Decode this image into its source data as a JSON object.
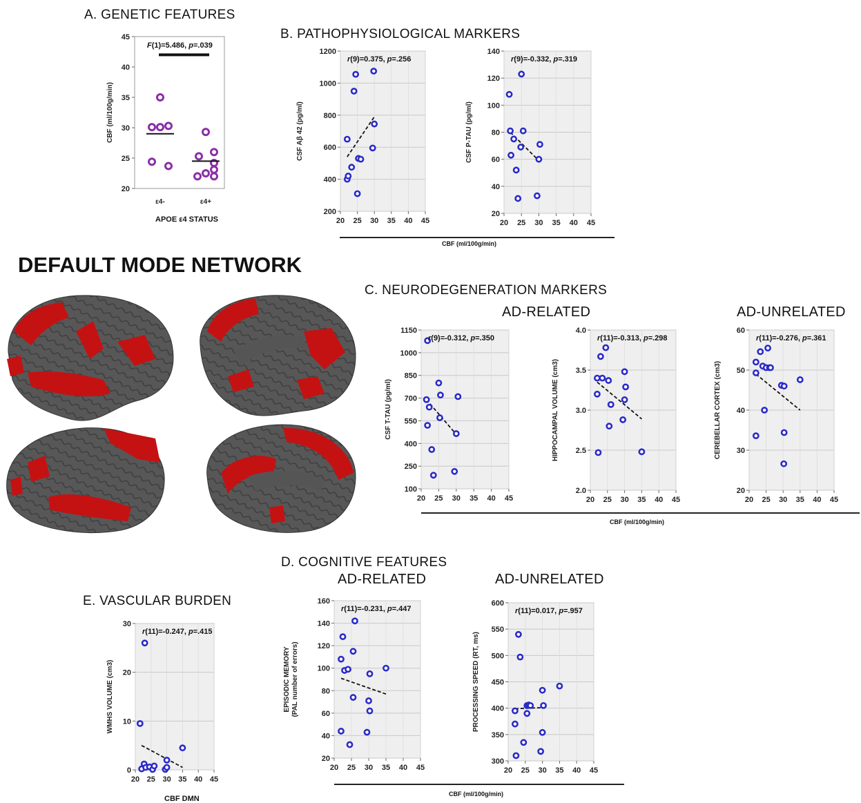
{
  "network_title": "DEFAULT MODE NETWORK",
  "sections": {
    "a": "A. GENETIC  FEATURES",
    "b": "B. PATHOPHYSIOLOGICAL  MARKERS",
    "c": "C. NEURODEGENERATION  MARKERS",
    "c_ad_related": "AD-RELATED",
    "c_ad_unrelated": "AD-UNRELATED",
    "d": "D. COGNITIVE  FEATURES",
    "d_ad_related": "AD-RELATED",
    "d_ad_unrelated": "AD-UNRELATED",
    "e": "E. VASCULAR  BURDEN"
  },
  "shared_xlabels": {
    "b": "CBF (ml/100g/min)",
    "c": "CBF (ml/100g/min)",
    "d": "CBF (ml/100g/min)",
    "e": "CBF DMN"
  },
  "brain": {
    "cortex_color": "#555556",
    "network_color": "#c41212",
    "views": [
      "lateral-left",
      "medial-right",
      "lateral-right",
      "medial-left"
    ]
  },
  "chart_data": [
    {
      "id": "apoe",
      "type": "scatter",
      "categories": [
        "ε4-",
        "ε4+"
      ],
      "groups": [
        {
          "name": "ε4-",
          "values": [
            35,
            30.1,
            30.1,
            30.3,
            24.4,
            23.7
          ],
          "mean": 29
        }
      ],
      "groups_extra": [
        {
          "name": "ε4+",
          "values": [
            29.3,
            26,
            25.3,
            24.2,
            23.1,
            22,
            22,
            22.5
          ],
          "mean": 24.5
        }
      ],
      "annotation": "F(1)=5.486, p=.039",
      "ylabel": "CBF (ml/100g/min)",
      "xlabel": "APOE ε4 STATUS",
      "ylim": [
        20,
        45
      ],
      "yticks": [
        20,
        25,
        30,
        35,
        40,
        45
      ],
      "marker_color": "#8b2fa8",
      "bg": "#ffffff"
    },
    {
      "id": "abeta",
      "type": "scatter",
      "annotation": "r(9)=0.375, p=.256",
      "ylabel": "CSF Aβ 42 (pg/ml)",
      "xlim": [
        20,
        45
      ],
      "ylim": [
        200,
        1200
      ],
      "xticks": [
        20,
        25,
        30,
        35,
        40,
        45
      ],
      "yticks": [
        200,
        400,
        600,
        800,
        1000,
        1200
      ],
      "points": [
        [
          22,
          400
        ],
        [
          22.3,
          420
        ],
        [
          22,
          650
        ],
        [
          23.3,
          475
        ],
        [
          24,
          950
        ],
        [
          24.5,
          1055
        ],
        [
          25,
          310
        ],
        [
          25.3,
          530
        ],
        [
          26,
          525
        ],
        [
          29.5,
          595
        ],
        [
          30,
          745
        ],
        [
          29.8,
          1075
        ]
      ],
      "trend": [
        [
          22,
          540
        ],
        [
          30,
          790
        ]
      ],
      "marker_color": "#2a2ac8"
    },
    {
      "id": "ptau",
      "type": "scatter",
      "annotation": "r(9)=-0.332, p=.319",
      "ylabel": "CSF P-TAU (pg/ml)",
      "xlim": [
        20,
        45
      ],
      "ylim": [
        20,
        140
      ],
      "xticks": [
        20,
        25,
        30,
        35,
        40,
        45
      ],
      "yticks": [
        20,
        40,
        60,
        80,
        100,
        120,
        140
      ],
      "points": [
        [
          21.5,
          108
        ],
        [
          21.8,
          81
        ],
        [
          22,
          63
        ],
        [
          22.8,
          75
        ],
        [
          23.5,
          52
        ],
        [
          24,
          31
        ],
        [
          24.8,
          69
        ],
        [
          25,
          123
        ],
        [
          25.5,
          81
        ],
        [
          29.5,
          33
        ],
        [
          30,
          60
        ],
        [
          30.3,
          71
        ]
      ],
      "trend": [
        [
          21.8,
          80
        ],
        [
          30,
          59
        ]
      ],
      "marker_color": "#2a2ac8"
    },
    {
      "id": "ttau",
      "type": "scatter",
      "annotation": "r(9)=-0.312, p=.350",
      "ylabel": "CSF T-TAU (pg/ml)",
      "xlim": [
        20,
        45
      ],
      "ylim": [
        100,
        1150
      ],
      "xticks": [
        20,
        25,
        30,
        35,
        40,
        45
      ],
      "yticks": [
        100,
        250,
        400,
        550,
        700,
        850,
        1000,
        1150
      ],
      "points": [
        [
          21.8,
          1080
        ],
        [
          21.5,
          690
        ],
        [
          22.3,
          640
        ],
        [
          21.8,
          520
        ],
        [
          23,
          360
        ],
        [
          23.5,
          190
        ],
        [
          25,
          800
        ],
        [
          25.5,
          720
        ],
        [
          25.3,
          570
        ],
        [
          29.5,
          215
        ],
        [
          30,
          465
        ],
        [
          30.5,
          710
        ]
      ],
      "trend": [
        [
          21.5,
          690
        ],
        [
          30,
          460
        ]
      ],
      "marker_color": "#2a2ac8"
    },
    {
      "id": "hippocampal",
      "type": "scatter",
      "annotation": "r(11)=-0.313, p=.298",
      "ylabel": "HIPPOCAMPAL VOLUME (cm3)",
      "xlim": [
        20,
        45
      ],
      "ylim": [
        2,
        4
      ],
      "xticks": [
        20,
        25,
        30,
        35,
        40,
        45
      ],
      "yticks": [
        2.0,
        2.5,
        3.0,
        3.5,
        4.0
      ],
      "points": [
        [
          22,
          3.4
        ],
        [
          22,
          3.2
        ],
        [
          22.3,
          2.47
        ],
        [
          23,
          3.67
        ],
        [
          23.5,
          3.4
        ],
        [
          24.5,
          3.78
        ],
        [
          25.3,
          3.37
        ],
        [
          25.5,
          2.8
        ],
        [
          26,
          3.07
        ],
        [
          29.5,
          2.88
        ],
        [
          30,
          3.48
        ],
        [
          30.3,
          3.29
        ],
        [
          30,
          3.13
        ],
        [
          35,
          2.48
        ]
      ],
      "trend": [
        [
          22,
          3.35
        ],
        [
          35,
          2.89
        ]
      ],
      "marker_color": "#2a2ac8"
    },
    {
      "id": "cerebellar",
      "type": "scatter",
      "annotation": "r(11)=-0.276, p=.361",
      "ylabel": "CEREBELLAR CORTEX (cm3)",
      "xlim": [
        20,
        45
      ],
      "ylim": [
        20,
        60
      ],
      "xticks": [
        20,
        25,
        30,
        35,
        40,
        45
      ],
      "yticks": [
        20,
        30,
        40,
        50,
        60
      ],
      "points": [
        [
          22,
          52
        ],
        [
          22,
          49.3
        ],
        [
          22,
          33.6
        ],
        [
          23.3,
          54.6
        ],
        [
          24,
          51
        ],
        [
          24.5,
          40
        ],
        [
          25,
          50.6
        ],
        [
          25.5,
          55.5
        ],
        [
          26,
          50.6
        ],
        [
          26.3,
          50.6
        ],
        [
          29.5,
          46.2
        ],
        [
          30.3,
          46
        ],
        [
          30.3,
          34.4
        ],
        [
          30.2,
          26.6
        ],
        [
          35,
          47.6
        ]
      ],
      "trend": [
        [
          22,
          49
        ],
        [
          35,
          40
        ]
      ],
      "marker_color": "#2a2ac8"
    },
    {
      "id": "episodic",
      "type": "scatter",
      "annotation": "r(11)=-0.231, p=.447",
      "ylabel": "EPISODIC MEMORY (PAL number of errors)",
      "xlim": [
        20,
        45
      ],
      "ylim": [
        20,
        160
      ],
      "xticks": [
        20,
        25,
        30,
        35,
        40,
        45
      ],
      "yticks": [
        20,
        40,
        60,
        80,
        100,
        120,
        140,
        160
      ],
      "points": [
        [
          22,
          44
        ],
        [
          22,
          108
        ],
        [
          22.5,
          128
        ],
        [
          23,
          98
        ],
        [
          24,
          99
        ],
        [
          24.5,
          32
        ],
        [
          25.5,
          74
        ],
        [
          25.5,
          115
        ],
        [
          26,
          142
        ],
        [
          29.5,
          43
        ],
        [
          30,
          71
        ],
        [
          30.3,
          62
        ],
        [
          30.3,
          95
        ],
        [
          35,
          100
        ]
      ],
      "trend": [
        [
          22,
          91
        ],
        [
          35,
          77
        ]
      ],
      "marker_color": "#2a2ac8"
    },
    {
      "id": "processing",
      "type": "scatter",
      "annotation": "r(11)=0.017, p=.957",
      "ylabel": "PROCESSING SPEED (RT, ms)",
      "xlim": [
        20,
        45
      ],
      "ylim": [
        300,
        600
      ],
      "xticks": [
        20,
        25,
        30,
        35,
        40,
        45
      ],
      "yticks": [
        300,
        350,
        400,
        450,
        500,
        550,
        600
      ],
      "points": [
        [
          22,
          395
        ],
        [
          22,
          370
        ],
        [
          22.3,
          310
        ],
        [
          23,
          540
        ],
        [
          23.5,
          497
        ],
        [
          24.5,
          335
        ],
        [
          25.5,
          390
        ],
        [
          25.5,
          405
        ],
        [
          26,
          406
        ],
        [
          26.5,
          405
        ],
        [
          29.5,
          318
        ],
        [
          30,
          354
        ],
        [
          30.3,
          405
        ],
        [
          30,
          434
        ],
        [
          35,
          442
        ]
      ],
      "trend": [
        [
          22,
          399
        ],
        [
          30,
          401
        ]
      ],
      "marker_color": "#2a2ac8"
    },
    {
      "id": "wmhs",
      "type": "scatter",
      "annotation": "r(11)=-0.247, p=.415",
      "ylabel": "WMHS VOLUME (cm3)",
      "xlim": [
        20,
        45
      ],
      "ylim": [
        0,
        30
      ],
      "xticks": [
        20,
        25,
        30,
        35,
        40,
        45
      ],
      "yticks": [
        0,
        10,
        20,
        30
      ],
      "points": [
        [
          21.5,
          9.5
        ],
        [
          22,
          0.2
        ],
        [
          22.8,
          1.2
        ],
        [
          23,
          26
        ],
        [
          23.3,
          0.5
        ],
        [
          24.5,
          0.6
        ],
        [
          25.5,
          0.1
        ],
        [
          26,
          0.8
        ],
        [
          29.5,
          0.1
        ],
        [
          30,
          2
        ],
        [
          30,
          0.5
        ],
        [
          35,
          4.5
        ]
      ],
      "trend": [
        [
          22,
          5
        ],
        [
          35,
          0.5
        ]
      ],
      "marker_color": "#2a2ac8"
    }
  ]
}
